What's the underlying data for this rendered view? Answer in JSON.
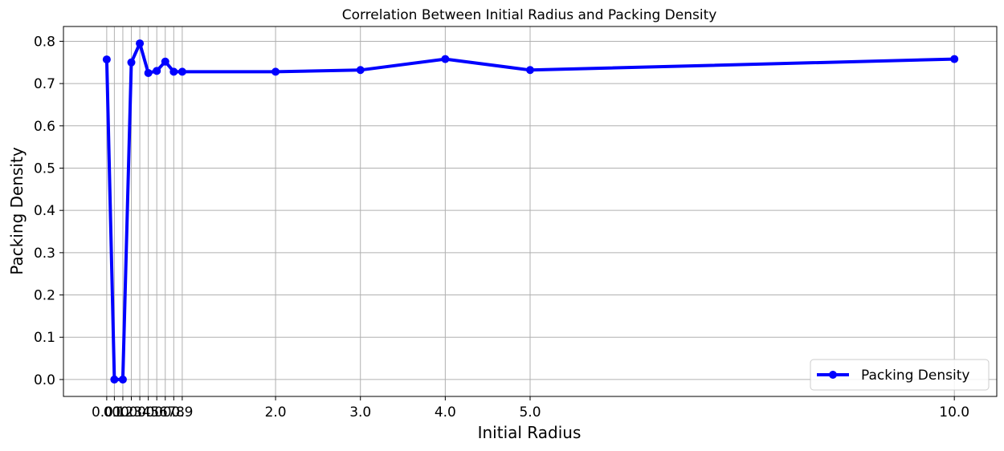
{
  "chart_data": {
    "type": "line",
    "title": "Correlation Between Initial Radius and Packing Density",
    "xlabel": "Initial Radius",
    "ylabel": "Packing Density",
    "x": [
      0.01,
      0.1,
      0.2,
      0.3,
      0.4,
      0.5,
      0.6,
      0.7,
      0.8,
      0.9,
      2.0,
      3.0,
      4.0,
      5.0,
      10.0
    ],
    "x_tick_labels": [
      "0.01",
      "0.1",
      "0.2",
      "0.3",
      "0.4",
      "0.5",
      "0.6",
      "0.7",
      "0.8",
      "0.9",
      "2.0",
      "3.0",
      "4.0",
      "5.0",
      "10.0"
    ],
    "y_ticks": [
      0.0,
      0.1,
      0.2,
      0.3,
      0.4,
      0.5,
      0.6,
      0.7,
      0.8
    ],
    "y_tick_labels": [
      "0.0",
      "0.1",
      "0.2",
      "0.3",
      "0.4",
      "0.5",
      "0.6",
      "0.7",
      "0.8"
    ],
    "xlim": [
      -0.5,
      10.5
    ],
    "ylim": [
      -0.04,
      0.835
    ],
    "grid": true,
    "legend_position": "lower-right",
    "series": [
      {
        "name": "Packing Density",
        "color": "#0000ff",
        "marker": "circle",
        "values": [
          0.757,
          0.0,
          0.0,
          0.75,
          0.795,
          0.725,
          0.73,
          0.752,
          0.728,
          0.728,
          0.728,
          0.732,
          0.758,
          0.732,
          0.758
        ]
      }
    ]
  }
}
